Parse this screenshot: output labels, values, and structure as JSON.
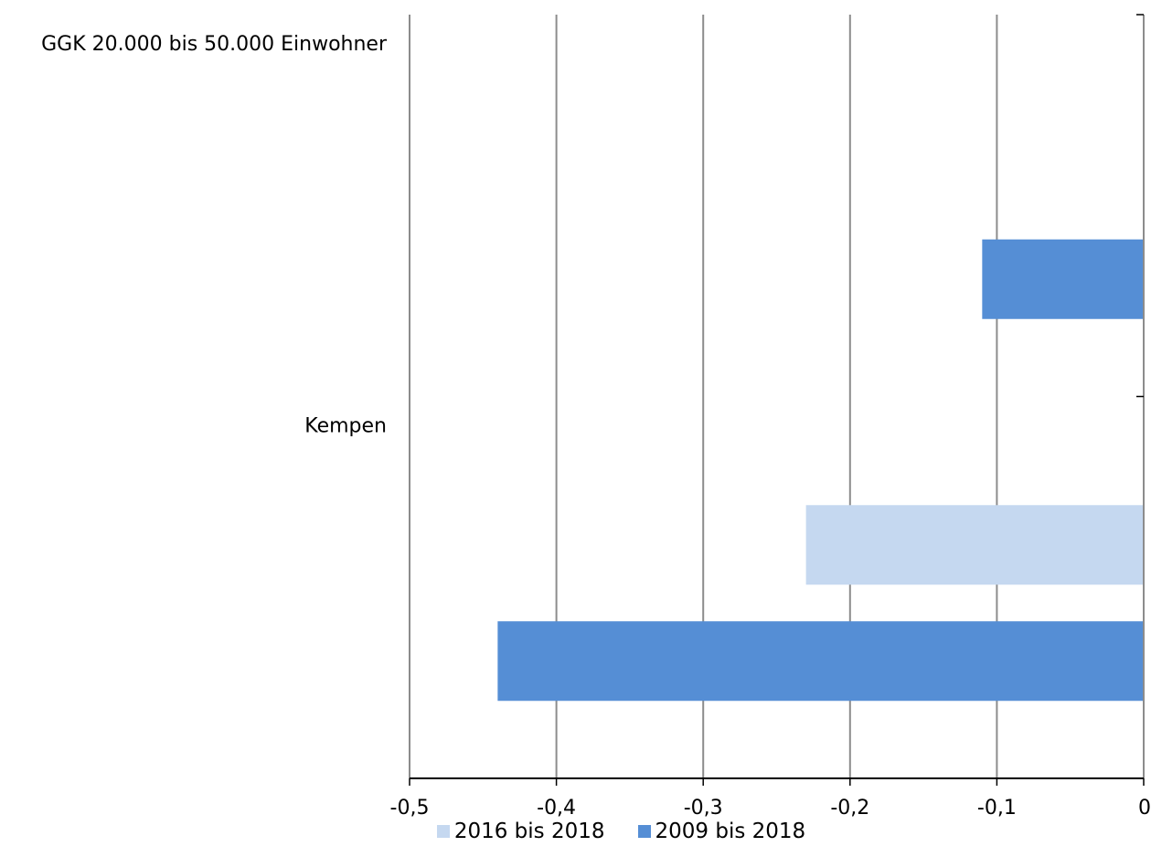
{
  "chart_data": {
    "type": "bar",
    "orientation": "horizontal",
    "categories": [
      "GGK 20.000 bis 50.000 Einwohner",
      "Kempen"
    ],
    "series": [
      {
        "name": "2016 bis 2018",
        "values": [
          0,
          -0.23
        ],
        "color": "#c5d8f0"
      },
      {
        "name": "2009 bis 2018",
        "values": [
          -0.11,
          -0.44
        ],
        "color": "#558ed5"
      }
    ],
    "xlim": [
      -0.5,
      0
    ],
    "xticks": [
      -0.5,
      -0.4,
      -0.3,
      -0.2,
      -0.1,
      0
    ],
    "xtick_labels": [
      "-0,5",
      "-0,4",
      "-0,3",
      "-0,2",
      "-0,1",
      "0"
    ],
    "grid": "vertical",
    "legend_position": "bottom",
    "title": "",
    "xlabel": "",
    "ylabel": ""
  }
}
